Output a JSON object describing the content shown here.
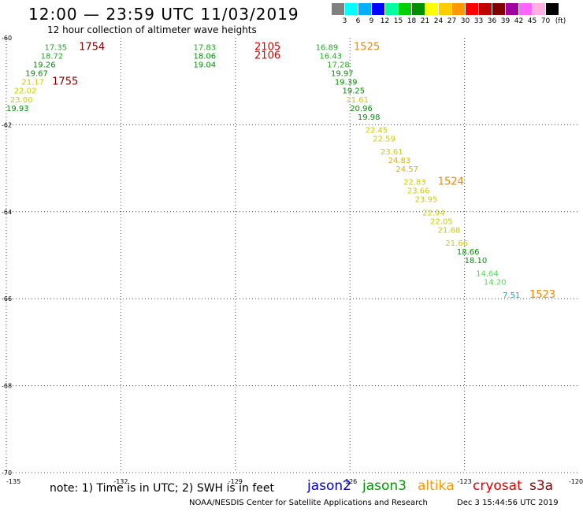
{
  "title": "12:00 — 23:59 UTC 11/03/2019",
  "subtitle": "12 hour collection of altimeter wave heights",
  "legend": {
    "colors": [
      "#808080",
      "#00ffff",
      "#00b0ff",
      "#0000ff",
      "#00ffa0",
      "#00d000",
      "#009000",
      "#ffff00",
      "#ffcc00",
      "#ff9900",
      "#ff0000",
      "#c00000",
      "#800000",
      "#a000a0",
      "#ff66ff",
      "#ffb0e0",
      "#000000"
    ],
    "labels": [
      "3",
      "6",
      "9",
      "12",
      "15",
      "18",
      "21",
      "24",
      "27",
      "30",
      "33",
      "36",
      "39",
      "42",
      "45",
      "70"
    ],
    "unit": "(ft)"
  },
  "chart_data": {
    "type": "scatter",
    "xlim": [
      -135,
      -120
    ],
    "ylim": [
      -70,
      -60
    ],
    "xticks": [
      "-135",
      "-132",
      "-129",
      "-126",
      "-123",
      "-120"
    ],
    "yticks": [
      "-60",
      "-62",
      "-64",
      "-66",
      "-68",
      "-70"
    ],
    "points": [
      {
        "x": -134.0,
        "y": -60.1,
        "label": "17.35",
        "color": "#22aa22"
      },
      {
        "x": -134.1,
        "y": -60.3,
        "label": "18.72",
        "color": "#22aa22"
      },
      {
        "x": -134.3,
        "y": -60.5,
        "label": "19.26",
        "color": "#009000"
      },
      {
        "x": -134.5,
        "y": -60.7,
        "label": "19.67",
        "color": "#009000"
      },
      {
        "x": -134.6,
        "y": -60.9,
        "label": "21.17",
        "color": "#cccc00"
      },
      {
        "x": -134.8,
        "y": -61.1,
        "label": "22.02",
        "color": "#cccc00"
      },
      {
        "x": -134.9,
        "y": -61.3,
        "label": "23.00",
        "color": "#cccc00"
      },
      {
        "x": -135.0,
        "y": -61.5,
        "label": "19.93",
        "color": "#009000"
      },
      {
        "x": -130.1,
        "y": -60.1,
        "label": "17.83",
        "color": "#22aa22"
      },
      {
        "x": -130.1,
        "y": -60.3,
        "label": "18.06",
        "color": "#009000"
      },
      {
        "x": -130.1,
        "y": -60.5,
        "label": "19.04",
        "color": "#009000"
      },
      {
        "x": -126.9,
        "y": -60.1,
        "label": "16.89",
        "color": "#22aa22"
      },
      {
        "x": -126.8,
        "y": -60.3,
        "label": "16.43",
        "color": "#22aa22"
      },
      {
        "x": -126.6,
        "y": -60.5,
        "label": "17.28",
        "color": "#22aa22"
      },
      {
        "x": -126.5,
        "y": -60.7,
        "label": "19.97",
        "color": "#009000"
      },
      {
        "x": -126.4,
        "y": -60.9,
        "label": "19.39",
        "color": "#009000"
      },
      {
        "x": -126.2,
        "y": -61.1,
        "label": "19.25",
        "color": "#009000"
      },
      {
        "x": -126.1,
        "y": -61.3,
        "label": "21.61",
        "color": "#cccc00"
      },
      {
        "x": -126.0,
        "y": -61.5,
        "label": "20.96",
        "color": "#009000"
      },
      {
        "x": -125.8,
        "y": -61.7,
        "label": "19.98",
        "color": "#009000"
      },
      {
        "x": -125.6,
        "y": -62.0,
        "label": "22.45",
        "color": "#cccc00"
      },
      {
        "x": -125.4,
        "y": -62.2,
        "label": "22.59",
        "color": "#cccc00"
      },
      {
        "x": -125.2,
        "y": -62.5,
        "label": "23.61",
        "color": "#cccc00"
      },
      {
        "x": -125.0,
        "y": -62.7,
        "label": "24.83",
        "color": "#e0b000"
      },
      {
        "x": -124.8,
        "y": -62.9,
        "label": "24.57",
        "color": "#e0b000"
      },
      {
        "x": -124.6,
        "y": -63.2,
        "label": "22.83",
        "color": "#cccc00"
      },
      {
        "x": -124.5,
        "y": -63.4,
        "label": "23.66",
        "color": "#cccc00"
      },
      {
        "x": -124.3,
        "y": -63.6,
        "label": "23.95",
        "color": "#cccc00"
      },
      {
        "x": -124.1,
        "y": -63.9,
        "label": "22.94",
        "color": "#cccc00"
      },
      {
        "x": -123.9,
        "y": -64.1,
        "label": "22.05",
        "color": "#cccc00"
      },
      {
        "x": -123.7,
        "y": -64.3,
        "label": "21.68",
        "color": "#cccc00"
      },
      {
        "x": -123.5,
        "y": -64.6,
        "label": "21.66",
        "color": "#cccc00"
      },
      {
        "x": -123.2,
        "y": -64.8,
        "label": "18.66",
        "color": "#009000"
      },
      {
        "x": -123.0,
        "y": -65.0,
        "label": "18.10",
        "color": "#009000"
      },
      {
        "x": -122.7,
        "y": -65.3,
        "label": "14.64",
        "color": "#55dd55"
      },
      {
        "x": -122.5,
        "y": -65.5,
        "label": "14.20",
        "color": "#55dd55"
      },
      {
        "x": -122.0,
        "y": -65.8,
        "label": "7.51",
        "color": "#00aadd"
      }
    ],
    "time_labels": [
      {
        "x": -133.1,
        "y": -60.1,
        "label": "1754",
        "color": "#800000"
      },
      {
        "x": -133.8,
        "y": -60.9,
        "label": "1755",
        "color": "#800000"
      },
      {
        "x": -128.5,
        "y": -60.1,
        "label": "2105",
        "color": "#dd0000"
      },
      {
        "x": -128.5,
        "y": -60.3,
        "label": "2106",
        "color": "#dd0000"
      },
      {
        "x": -125.9,
        "y": -60.1,
        "label": "1525",
        "color": "#ee8800"
      },
      {
        "x": -123.7,
        "y": -63.2,
        "label": "1524",
        "color": "#ee8800"
      },
      {
        "x": -121.3,
        "y": -65.8,
        "label": "1523",
        "color": "#ee8800"
      }
    ]
  },
  "footer": {
    "note": "note: 1) Time is in UTC; 2) SWH is in feet",
    "satellites": [
      {
        "name": "jason2",
        "color": "#0000cc"
      },
      {
        "name": "jason3",
        "color": "#009900"
      },
      {
        "name": "altika",
        "color": "#ff9900"
      },
      {
        "name": "cryosat",
        "color": "#dd0000"
      },
      {
        "name": "s3a",
        "color": "#880000"
      }
    ],
    "credit": "NOAA/NESDIS Center for Satellite Applications and Research",
    "timestamp": "Dec  3 15:44:56 UTC 2019"
  }
}
